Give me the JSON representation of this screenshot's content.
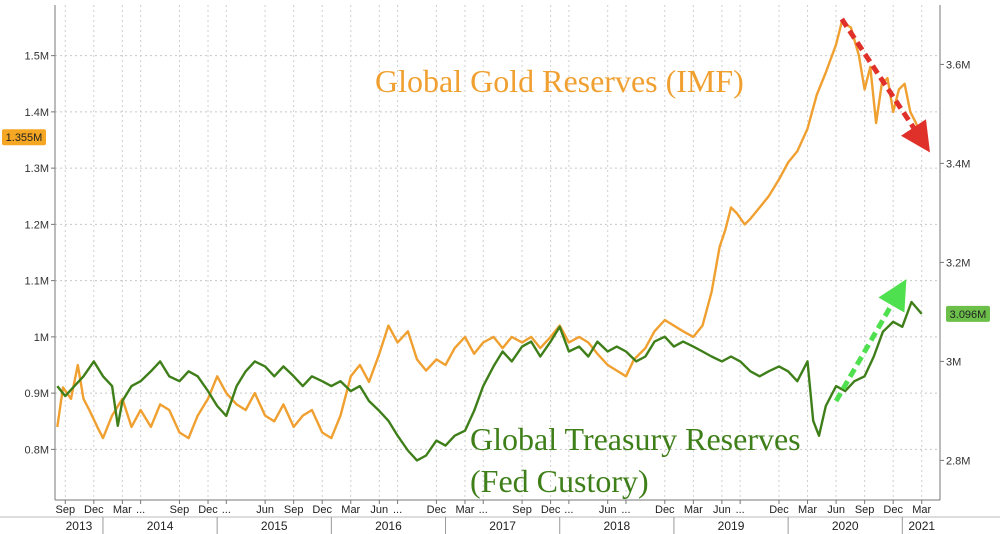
{
  "chart_data": {
    "type": "line",
    "title": "",
    "annotations": {
      "gold_title": "Global Gold Reserves (IMF)",
      "treasury_title_line1": "Global Treasury Reserves",
      "treasury_title_line2": "(Fed Custory)"
    },
    "left_axis": {
      "ticks": [
        {
          "value": 0.8,
          "label": "0.8M"
        },
        {
          "value": 0.9,
          "label": "0.9M"
        },
        {
          "value": 1.0,
          "label": "1M"
        },
        {
          "value": 1.1,
          "label": "1.1M"
        },
        {
          "value": 1.2,
          "label": "1.2M"
        },
        {
          "value": 1.3,
          "label": "1.3M"
        },
        {
          "value": 1.4,
          "label": "1.4M"
        },
        {
          "value": 1.5,
          "label": "1.5M"
        }
      ],
      "range": [
        0.71,
        1.59
      ],
      "last_value_label": "1.355M"
    },
    "right_axis": {
      "ticks": [
        {
          "value": 2.8,
          "label": "2.8M"
        },
        {
          "value": 3.0,
          "label": "3M"
        },
        {
          "value": 3.2,
          "label": "3.2M"
        },
        {
          "value": 3.4,
          "label": "3.4M"
        },
        {
          "value": 3.6,
          "label": "3.6M"
        }
      ],
      "range": [
        2.72,
        3.72
      ],
      "last_value_label": "3.096M"
    },
    "x_axis": {
      "start": 2013.58,
      "end": 2021.33,
      "month_ticks": [
        {
          "x": 2013.67,
          "label": "Sep"
        },
        {
          "x": 2013.92,
          "label": "Dec"
        },
        {
          "x": 2014.17,
          "label": "Mar"
        },
        {
          "x": 2014.33,
          "label": "..."
        },
        {
          "x": 2014.67,
          "label": "Sep"
        },
        {
          "x": 2014.92,
          "label": "Dec"
        },
        {
          "x": 2015.08,
          "label": "..."
        },
        {
          "x": 2015.42,
          "label": "Jun"
        },
        {
          "x": 2015.67,
          "label": "Sep"
        },
        {
          "x": 2015.92,
          "label": "Dec"
        },
        {
          "x": 2016.17,
          "label": "Mar"
        },
        {
          "x": 2016.42,
          "label": "Jun"
        },
        {
          "x": 2016.58,
          "label": "..."
        },
        {
          "x": 2016.92,
          "label": "Dec"
        },
        {
          "x": 2017.17,
          "label": "Mar"
        },
        {
          "x": 2017.33,
          "label": "..."
        },
        {
          "x": 2017.67,
          "label": "Sep"
        },
        {
          "x": 2017.92,
          "label": "Dec"
        },
        {
          "x": 2018.08,
          "label": "..."
        },
        {
          "x": 2018.42,
          "label": "Jun"
        },
        {
          "x": 2018.58,
          "label": "..."
        },
        {
          "x": 2018.92,
          "label": "Dec"
        },
        {
          "x": 2019.17,
          "label": "Mar"
        },
        {
          "x": 2019.42,
          "label": "Jun"
        },
        {
          "x": 2019.58,
          "label": "..."
        },
        {
          "x": 2019.92,
          "label": "Dec"
        },
        {
          "x": 2020.17,
          "label": "Mar"
        },
        {
          "x": 2020.42,
          "label": "Jun"
        },
        {
          "x": 2020.67,
          "label": "Sep"
        },
        {
          "x": 2020.92,
          "label": "Dec"
        },
        {
          "x": 2021.17,
          "label": "Mar"
        }
      ],
      "year_ticks": [
        {
          "x": 2013.79,
          "label": "2013"
        },
        {
          "x": 2014.5,
          "label": "2014"
        },
        {
          "x": 2015.5,
          "label": "2015"
        },
        {
          "x": 2016.5,
          "label": "2016"
        },
        {
          "x": 2017.5,
          "label": "2017"
        },
        {
          "x": 2018.5,
          "label": "2018"
        },
        {
          "x": 2019.5,
          "label": "2019"
        },
        {
          "x": 2020.5,
          "label": "2020"
        },
        {
          "x": 2021.17,
          "label": "2021"
        }
      ],
      "year_boundaries": [
        2014.0,
        2015.0,
        2016.0,
        2017.0,
        2018.0,
        2019.0,
        2020.0,
        2021.0
      ]
    },
    "grid": true,
    "series": [
      {
        "axis": "left",
        "color": "#f0a030",
        "points": [
          [
            2013.6,
            0.84
          ],
          [
            2013.65,
            0.91
          ],
          [
            2013.72,
            0.89
          ],
          [
            2013.78,
            0.95
          ],
          [
            2013.83,
            0.89
          ],
          [
            2013.88,
            0.87
          ],
          [
            2013.95,
            0.84
          ],
          [
            2014.0,
            0.82
          ],
          [
            2014.08,
            0.86
          ],
          [
            2014.17,
            0.89
          ],
          [
            2014.25,
            0.84
          ],
          [
            2014.33,
            0.87
          ],
          [
            2014.42,
            0.84
          ],
          [
            2014.5,
            0.88
          ],
          [
            2014.58,
            0.87
          ],
          [
            2014.67,
            0.83
          ],
          [
            2014.75,
            0.82
          ],
          [
            2014.83,
            0.86
          ],
          [
            2014.92,
            0.89
          ],
          [
            2015.0,
            0.93
          ],
          [
            2015.08,
            0.9
          ],
          [
            2015.17,
            0.88
          ],
          [
            2015.25,
            0.87
          ],
          [
            2015.33,
            0.9
          ],
          [
            2015.42,
            0.86
          ],
          [
            2015.5,
            0.85
          ],
          [
            2015.58,
            0.88
          ],
          [
            2015.67,
            0.84
          ],
          [
            2015.75,
            0.86
          ],
          [
            2015.83,
            0.87
          ],
          [
            2015.92,
            0.83
          ],
          [
            2016.0,
            0.82
          ],
          [
            2016.08,
            0.86
          ],
          [
            2016.17,
            0.93
          ],
          [
            2016.25,
            0.95
          ],
          [
            2016.33,
            0.92
          ],
          [
            2016.42,
            0.97
          ],
          [
            2016.5,
            1.02
          ],
          [
            2016.58,
            0.99
          ],
          [
            2016.67,
            1.01
          ],
          [
            2016.75,
            0.96
          ],
          [
            2016.83,
            0.94
          ],
          [
            2016.92,
            0.96
          ],
          [
            2017.0,
            0.95
          ],
          [
            2017.08,
            0.98
          ],
          [
            2017.17,
            1.0
          ],
          [
            2017.25,
            0.97
          ],
          [
            2017.33,
            0.99
          ],
          [
            2017.42,
            1.0
          ],
          [
            2017.5,
            0.98
          ],
          [
            2017.58,
            1.0
          ],
          [
            2017.67,
            0.99
          ],
          [
            2017.75,
            1.0
          ],
          [
            2017.83,
            0.98
          ],
          [
            2017.92,
            1.0
          ],
          [
            2018.0,
            1.02
          ],
          [
            2018.08,
            0.99
          ],
          [
            2018.17,
            1.0
          ],
          [
            2018.25,
            0.99
          ],
          [
            2018.33,
            0.97
          ],
          [
            2018.42,
            0.95
          ],
          [
            2018.5,
            0.94
          ],
          [
            2018.58,
            0.93
          ],
          [
            2018.65,
            0.96
          ],
          [
            2018.75,
            0.98
          ],
          [
            2018.83,
            1.01
          ],
          [
            2018.92,
            1.03
          ],
          [
            2019.0,
            1.02
          ],
          [
            2019.08,
            1.01
          ],
          [
            2019.17,
            1.0
          ],
          [
            2019.25,
            1.02
          ],
          [
            2019.33,
            1.08
          ],
          [
            2019.4,
            1.16
          ],
          [
            2019.45,
            1.19
          ],
          [
            2019.5,
            1.23
          ],
          [
            2019.55,
            1.22
          ],
          [
            2019.62,
            1.2
          ],
          [
            2019.67,
            1.21
          ],
          [
            2019.75,
            1.23
          ],
          [
            2019.83,
            1.25
          ],
          [
            2019.92,
            1.28
          ],
          [
            2020.0,
            1.31
          ],
          [
            2020.08,
            1.33
          ],
          [
            2020.17,
            1.37
          ],
          [
            2020.25,
            1.43
          ],
          [
            2020.33,
            1.47
          ],
          [
            2020.42,
            1.52
          ],
          [
            2020.47,
            1.56
          ],
          [
            2020.55,
            1.55
          ],
          [
            2020.62,
            1.5
          ],
          [
            2020.67,
            1.44
          ],
          [
            2020.72,
            1.48
          ],
          [
            2020.77,
            1.38
          ],
          [
            2020.82,
            1.45
          ],
          [
            2020.87,
            1.46
          ],
          [
            2020.92,
            1.4
          ],
          [
            2020.97,
            1.44
          ],
          [
            2021.02,
            1.45
          ],
          [
            2021.07,
            1.4
          ],
          [
            2021.12,
            1.38
          ],
          [
            2021.17,
            1.355
          ]
        ]
      },
      {
        "axis": "right",
        "color": "#3f7f1a",
        "points": [
          [
            2013.6,
            2.95
          ],
          [
            2013.67,
            2.93
          ],
          [
            2013.75,
            2.95
          ],
          [
            2013.83,
            2.97
          ],
          [
            2013.92,
            3.0
          ],
          [
            2014.0,
            2.97
          ],
          [
            2014.08,
            2.95
          ],
          [
            2014.13,
            2.87
          ],
          [
            2014.17,
            2.92
          ],
          [
            2014.25,
            2.95
          ],
          [
            2014.33,
            2.96
          ],
          [
            2014.42,
            2.98
          ],
          [
            2014.5,
            3.0
          ],
          [
            2014.58,
            2.97
          ],
          [
            2014.67,
            2.96
          ],
          [
            2014.75,
            2.98
          ],
          [
            2014.83,
            2.97
          ],
          [
            2014.92,
            2.94
          ],
          [
            2015.0,
            2.91
          ],
          [
            2015.08,
            2.89
          ],
          [
            2015.17,
            2.95
          ],
          [
            2015.25,
            2.98
          ],
          [
            2015.33,
            3.0
          ],
          [
            2015.42,
            2.99
          ],
          [
            2015.5,
            2.97
          ],
          [
            2015.58,
            2.99
          ],
          [
            2015.67,
            2.97
          ],
          [
            2015.75,
            2.95
          ],
          [
            2015.83,
            2.97
          ],
          [
            2015.92,
            2.96
          ],
          [
            2016.0,
            2.95
          ],
          [
            2016.08,
            2.96
          ],
          [
            2016.17,
            2.94
          ],
          [
            2016.25,
            2.95
          ],
          [
            2016.33,
            2.92
          ],
          [
            2016.42,
            2.9
          ],
          [
            2016.5,
            2.88
          ],
          [
            2016.58,
            2.85
          ],
          [
            2016.67,
            2.82
          ],
          [
            2016.75,
            2.8
          ],
          [
            2016.83,
            2.81
          ],
          [
            2016.92,
            2.84
          ],
          [
            2017.0,
            2.83
          ],
          [
            2017.08,
            2.85
          ],
          [
            2017.17,
            2.86
          ],
          [
            2017.25,
            2.9
          ],
          [
            2017.33,
            2.95
          ],
          [
            2017.42,
            2.99
          ],
          [
            2017.5,
            3.02
          ],
          [
            2017.58,
            3.0
          ],
          [
            2017.67,
            3.03
          ],
          [
            2017.75,
            3.04
          ],
          [
            2017.83,
            3.01
          ],
          [
            2017.92,
            3.04
          ],
          [
            2018.0,
            3.07
          ],
          [
            2018.08,
            3.02
          ],
          [
            2018.17,
            3.03
          ],
          [
            2018.25,
            3.01
          ],
          [
            2018.33,
            3.04
          ],
          [
            2018.42,
            3.02
          ],
          [
            2018.5,
            3.03
          ],
          [
            2018.58,
            3.02
          ],
          [
            2018.67,
            3.0
          ],
          [
            2018.75,
            3.01
          ],
          [
            2018.83,
            3.04
          ],
          [
            2018.92,
            3.05
          ],
          [
            2019.0,
            3.03
          ],
          [
            2019.08,
            3.04
          ],
          [
            2019.17,
            3.03
          ],
          [
            2019.25,
            3.02
          ],
          [
            2019.33,
            3.01
          ],
          [
            2019.42,
            3.0
          ],
          [
            2019.5,
            3.01
          ],
          [
            2019.58,
            3.0
          ],
          [
            2019.67,
            2.98
          ],
          [
            2019.75,
            2.97
          ],
          [
            2019.83,
            2.98
          ],
          [
            2019.92,
            2.99
          ],
          [
            2020.0,
            2.98
          ],
          [
            2020.08,
            2.96
          ],
          [
            2020.17,
            3.0
          ],
          [
            2020.22,
            2.88
          ],
          [
            2020.27,
            2.85
          ],
          [
            2020.33,
            2.91
          ],
          [
            2020.42,
            2.95
          ],
          [
            2020.5,
            2.94
          ],
          [
            2020.58,
            2.96
          ],
          [
            2020.67,
            2.97
          ],
          [
            2020.75,
            3.01
          ],
          [
            2020.83,
            3.06
          ],
          [
            2020.92,
            3.08
          ],
          [
            2021.0,
            3.07
          ],
          [
            2021.08,
            3.12
          ],
          [
            2021.17,
            3.096
          ]
        ]
      }
    ]
  }
}
